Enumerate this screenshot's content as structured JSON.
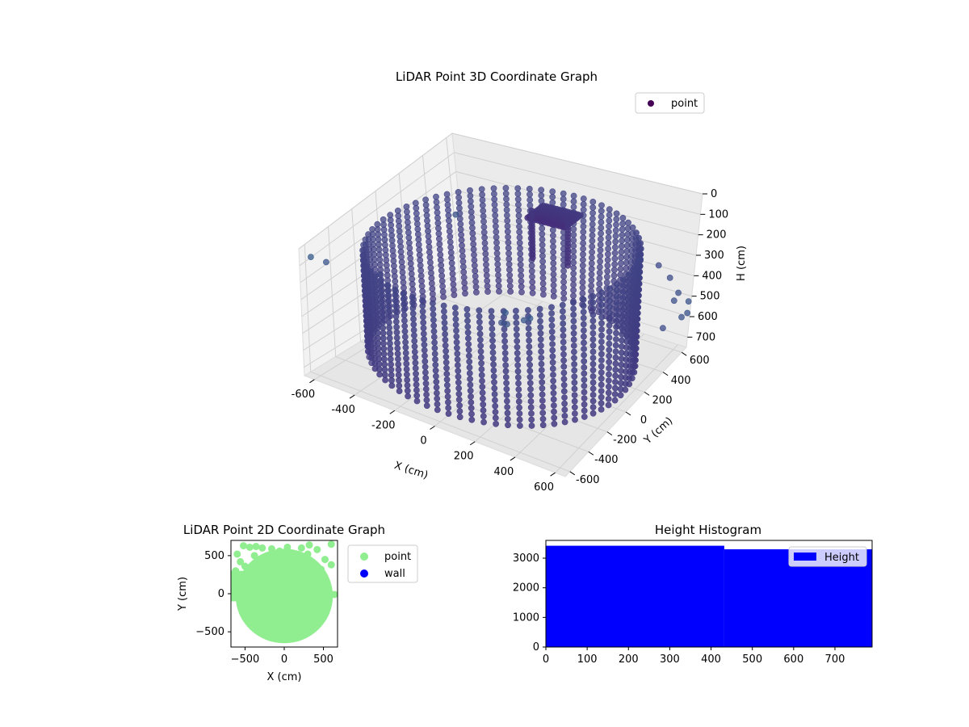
{
  "chart_data": [
    {
      "type": "scatter",
      "projection": "3d",
      "title": "LiDAR Point 3D Coordinate Graph",
      "xlabel": "X (cm)",
      "ylabel": "Y (cm)",
      "zlabel": "H (cm)",
      "x_ticks": [
        "-600",
        "-400",
        "-200",
        "0",
        "200",
        "400",
        "600"
      ],
      "y_ticks": [
        "-600",
        "-400",
        "-200",
        "0",
        "200",
        "400",
        "600"
      ],
      "z_ticks": [
        "0",
        "100",
        "200",
        "300",
        "400",
        "500",
        "600",
        "700"
      ],
      "xlim": [
        -650,
        650
      ],
      "ylim": [
        -650,
        650
      ],
      "zlim": [
        0,
        750
      ],
      "z_inverted": true,
      "colormap": "viridis",
      "legend": {
        "position": "top-right",
        "entries": [
          {
            "label": "point",
            "color": "#440154"
          }
        ]
      },
      "grid": true,
      "wall_radius": 620,
      "wall_height": [
        150,
        700
      ],
      "stray_points": [
        {
          "x": -560,
          "y": -700,
          "h": 0
        },
        {
          "x": -520,
          "y": -640,
          "h": 50
        },
        {
          "x": -300,
          "y": -560,
          "h": 100
        },
        {
          "x": 420,
          "y": -700,
          "h": 120
        },
        {
          "x": 500,
          "y": -690,
          "h": 90
        },
        {
          "x": 550,
          "y": -720,
          "h": 60
        },
        {
          "x": 380,
          "y": -680,
          "h": 130
        },
        {
          "x": 450,
          "y": -760,
          "h": 40
        },
        {
          "x": 600,
          "y": 660,
          "h": 620
        },
        {
          "x": 640,
          "y": 640,
          "h": 580
        },
        {
          "x": 560,
          "y": 640,
          "h": 540
        },
        {
          "x": 660,
          "y": 600,
          "h": 500
        },
        {
          "x": 620,
          "y": 560,
          "h": 450
        },
        {
          "x": 500,
          "y": 660,
          "h": 700
        },
        {
          "x": -640,
          "y": 600,
          "h": 400
        },
        {
          "x": 200,
          "y": 640,
          "h": 720
        },
        {
          "x": 120,
          "y": 600,
          "h": 690
        },
        {
          "x": 650,
          "y": 400,
          "h": 300
        },
        {
          "x": 660,
          "y": 260,
          "h": 180
        },
        {
          "x": 640,
          "y": 120,
          "h": 100
        }
      ]
    },
    {
      "type": "scatter",
      "title": "LiDAR Point 2D Coordinate Graph",
      "xlabel": "X (cm)",
      "ylabel": "Y (cm)",
      "x_ticks": [
        -500,
        0,
        500
      ],
      "y_ticks": [
        -500,
        0,
        500
      ],
      "xlim": [
        -680,
        680
      ],
      "ylim": [
        -700,
        700
      ],
      "legend": {
        "position": "right",
        "entries": [
          {
            "label": "point",
            "color": "#90ee90"
          },
          {
            "label": "wall",
            "color": "#0000ff"
          }
        ]
      },
      "points_color": "#90ee90",
      "disc": {
        "cx": 0,
        "cy": -30,
        "r": 620
      },
      "sparse_points": [
        {
          "x": -520,
          "y": 630
        },
        {
          "x": -440,
          "y": 610
        },
        {
          "x": -360,
          "y": 620
        },
        {
          "x": -280,
          "y": 600
        },
        {
          "x": -160,
          "y": 590
        },
        {
          "x": -60,
          "y": 560
        },
        {
          "x": 40,
          "y": 610
        },
        {
          "x": 220,
          "y": 600
        },
        {
          "x": 320,
          "y": 640
        },
        {
          "x": 420,
          "y": 580
        },
        {
          "x": 600,
          "y": 650
        },
        {
          "x": -600,
          "y": 520
        },
        {
          "x": -560,
          "y": 420
        },
        {
          "x": -620,
          "y": 300
        },
        {
          "x": -500,
          "y": 360
        },
        {
          "x": 520,
          "y": 450
        },
        {
          "x": 600,
          "y": 380
        },
        {
          "x": 470,
          "y": 320
        },
        {
          "x": 640,
          "y": -10
        },
        {
          "x": -640,
          "y": 50
        },
        {
          "x": 300,
          "y": 520
        },
        {
          "x": -380,
          "y": 500
        },
        {
          "x": 150,
          "y": 450
        },
        {
          "x": -200,
          "y": 430
        }
      ]
    },
    {
      "type": "bar",
      "title": "Height Histogram",
      "x_ticks": [
        0,
        100,
        200,
        300,
        400,
        500,
        600,
        700
      ],
      "y_ticks": [
        0,
        1000,
        2000,
        3000
      ],
      "xlim": [
        0,
        790
      ],
      "ylim": [
        0,
        3600
      ],
      "bar_color": "#0000ff",
      "legend": {
        "position": "upper right",
        "entries": [
          {
            "label": "Height",
            "color": "#0000ff"
          }
        ]
      },
      "bins": [
        {
          "x0": 0,
          "x1": 432,
          "count": 3420
        },
        {
          "x0": 432,
          "x1": 790,
          "count": 3300
        }
      ]
    }
  ]
}
